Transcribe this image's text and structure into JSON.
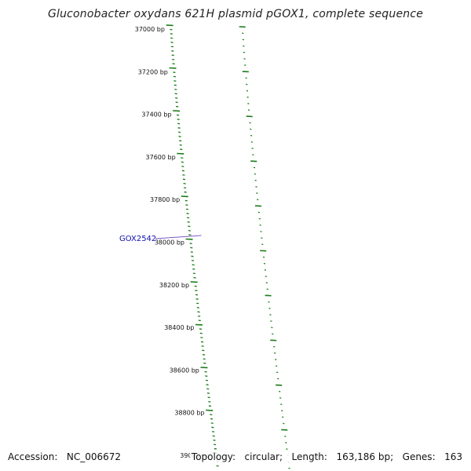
{
  "title": "Gluconobacter oxydans 621H plasmid pGOX1, complete sequence",
  "accession": {
    "label": "Accession:",
    "value": "NC_006672"
  },
  "topology": {
    "label": "Topology:",
    "value": "circular",
    "length_label": "Length:",
    "length_value": "163,186 bp",
    "genes_label": "Genes:",
    "genes_value": "163"
  },
  "ticks": [
    {
      "label": "37000 bp",
      "bp": 37000
    },
    {
      "label": "37200 bp",
      "bp": 37200
    },
    {
      "label": "37400 bp",
      "bp": 37400
    },
    {
      "label": "37600 bp",
      "bp": 37600
    },
    {
      "label": "37800 bp",
      "bp": 37800
    },
    {
      "label": "38000 bp",
      "bp": 38000
    },
    {
      "label": "38200 bp",
      "bp": 38200
    },
    {
      "label": "38400 bp",
      "bp": 38400
    },
    {
      "label": "38600 bp",
      "bp": 38600
    },
    {
      "label": "38800 bp",
      "bp": 38800
    },
    {
      "label": "39000 bp",
      "bp": 39000
    }
  ],
  "gene_feature": {
    "label": "GOX2542"
  },
  "colors": {
    "tick": "#1a7a1a",
    "orange_track": "#ff8c00",
    "pink_track": "#ff1493",
    "blue_track": "#0000ff",
    "gray_track": "#808080",
    "gene_label": "#1010b0",
    "gene_line": "#7a5cc8"
  }
}
